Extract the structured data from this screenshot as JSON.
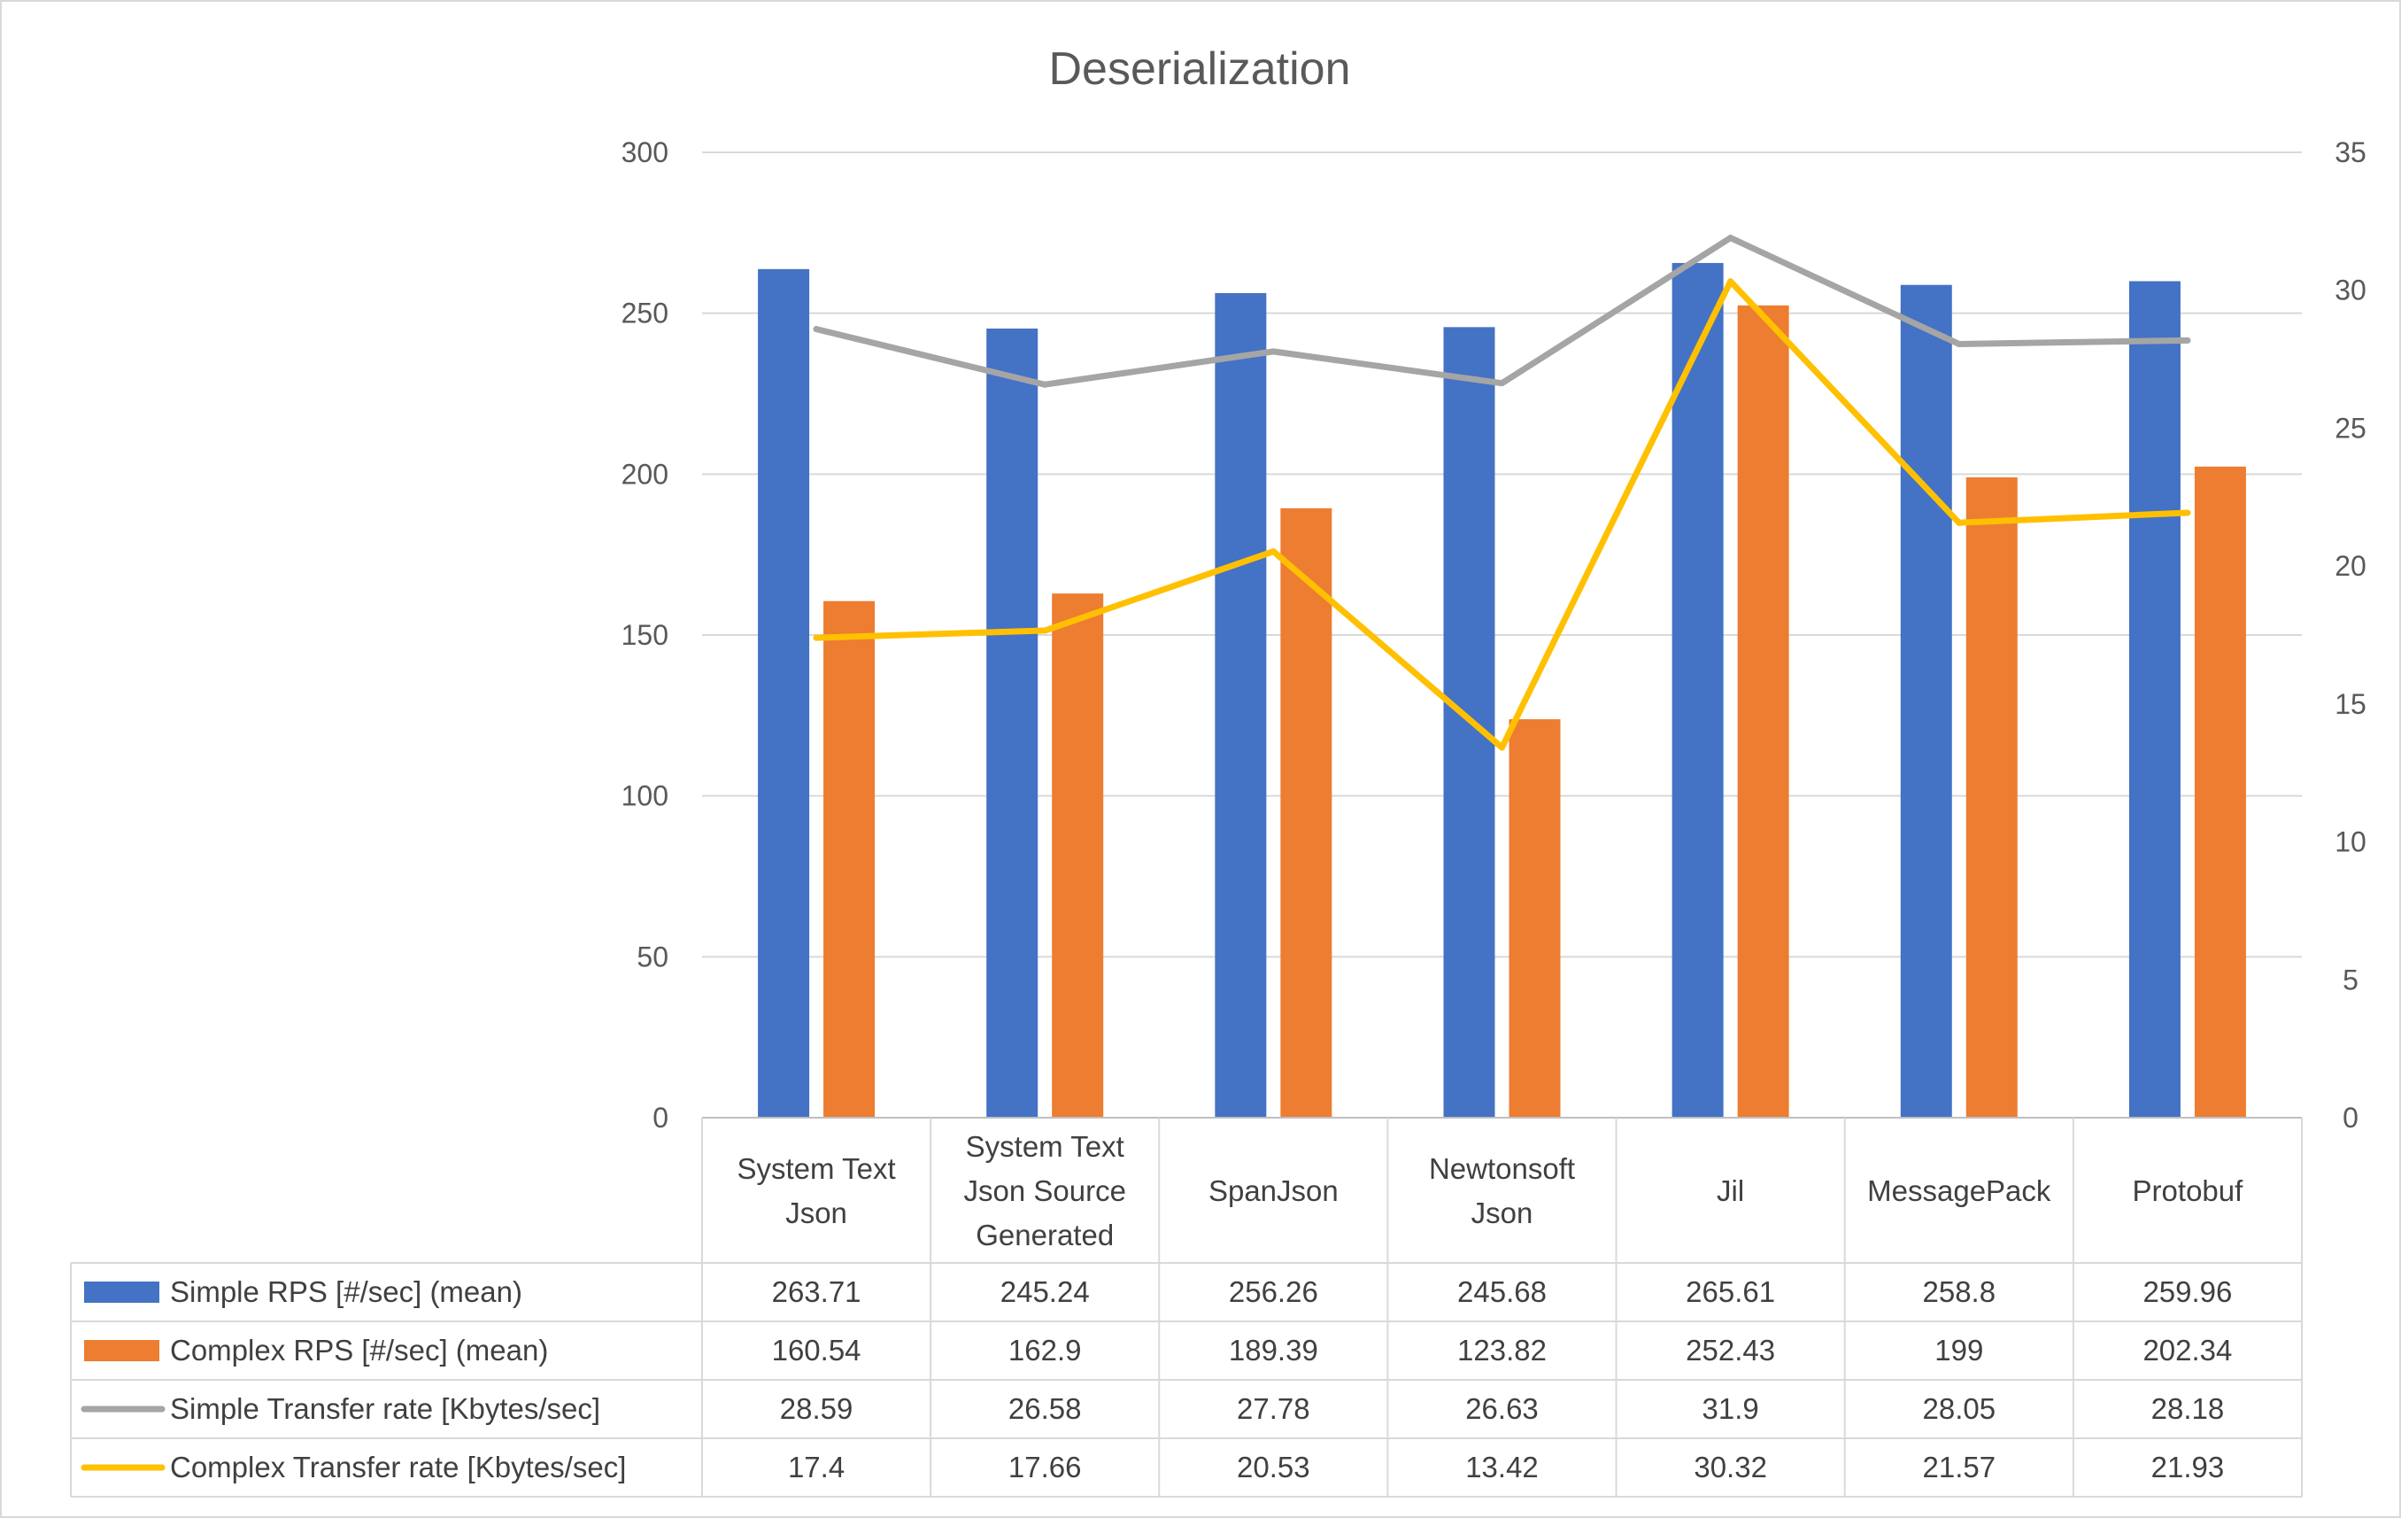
{
  "chart_data": {
    "type": "bar",
    "title": "Deserialization",
    "categories": [
      [
        "System Text",
        "Json"
      ],
      [
        "System Text",
        "Json Source",
        "Generated"
      ],
      [
        "SpanJson"
      ],
      [
        "Newtonsoft",
        "Json"
      ],
      [
        "Jil"
      ],
      [
        "MessagePack"
      ],
      [
        "Protobuf"
      ]
    ],
    "y_left": {
      "ylim": [
        0,
        300
      ],
      "ticks": [
        "0",
        "50",
        "100",
        "150",
        "200",
        "250",
        "300"
      ]
    },
    "y_right": {
      "ylim": [
        0,
        35
      ],
      "ticks": [
        "0",
        "5",
        "10",
        "15",
        "20",
        "25",
        "30",
        "35"
      ]
    },
    "grid": true,
    "legend": "data-table",
    "series": [
      {
        "name": "Simple RPS [#/sec] (mean)",
        "type": "bar",
        "axis": "left",
        "color": "#4472C4",
        "values": [
          263.71,
          245.24,
          256.26,
          245.68,
          265.61,
          258.8,
          259.96
        ],
        "labels": [
          "263.71",
          "245.24",
          "256.26",
          "245.68",
          "265.61",
          "258.8",
          "259.96"
        ]
      },
      {
        "name": "Complex RPS [#/sec] (mean)",
        "type": "bar",
        "axis": "left",
        "color": "#ED7D31",
        "values": [
          160.54,
          162.9,
          189.39,
          123.82,
          252.43,
          199,
          202.34
        ],
        "labels": [
          "160.54",
          "162.9",
          "189.39",
          "123.82",
          "252.43",
          "199",
          "202.34"
        ]
      },
      {
        "name": "Simple Transfer rate [Kbytes/sec]",
        "type": "line",
        "axis": "right",
        "color": "#A5A5A5",
        "values": [
          28.59,
          26.58,
          27.78,
          26.63,
          31.9,
          28.05,
          28.18
        ],
        "labels": [
          "28.59",
          "26.58",
          "27.78",
          "26.63",
          "31.9",
          "28.05",
          "28.18"
        ]
      },
      {
        "name": "Complex Transfer rate [Kbytes/sec]",
        "type": "line",
        "axis": "right",
        "color": "#FFC000",
        "values": [
          17.4,
          17.66,
          20.53,
          13.42,
          30.32,
          21.57,
          21.93
        ],
        "labels": [
          "17.4",
          "17.66",
          "20.53",
          "13.42",
          "30.32",
          "21.57",
          "21.93"
        ]
      }
    ]
  }
}
